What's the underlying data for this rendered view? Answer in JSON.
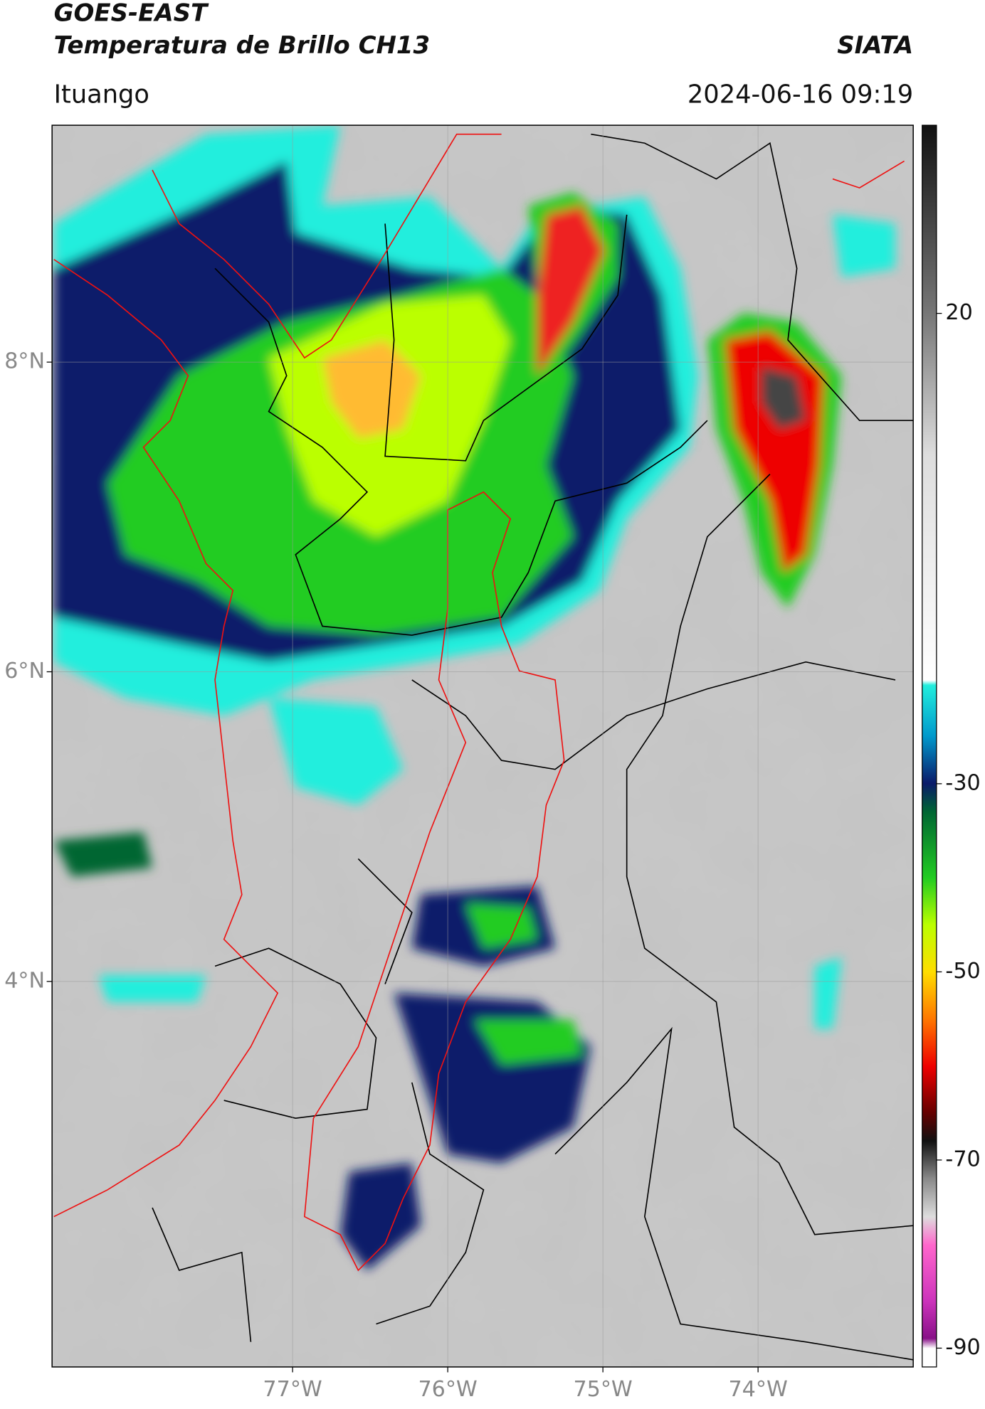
{
  "header": {
    "title": "GOES-EAST",
    "subtitle": "Temperatura de Brillo CH13",
    "source": "SIATA",
    "location": "Ituango",
    "timestamp": "2024-06-16 09:19"
  },
  "map": {
    "xlim": [
      -78.55,
      -73
    ],
    "ylim": [
      1.51,
      9.53
    ],
    "grid": true,
    "xticks": [
      {
        "value": -77,
        "label": "77°W"
      },
      {
        "value": -76,
        "label": "76°W"
      },
      {
        "value": -75,
        "label": "75°W"
      },
      {
        "value": -74,
        "label": "74°W"
      }
    ],
    "yticks": [
      {
        "value": 8,
        "label": "8°N"
      },
      {
        "value": 6,
        "label": "6°N"
      },
      {
        "value": 4,
        "label": "4°N"
      }
    ]
  },
  "colorbar": {
    "lim": [
      -92,
      40
    ],
    "ticks": [
      20,
      -30,
      -50,
      -70,
      -90
    ]
  }
}
